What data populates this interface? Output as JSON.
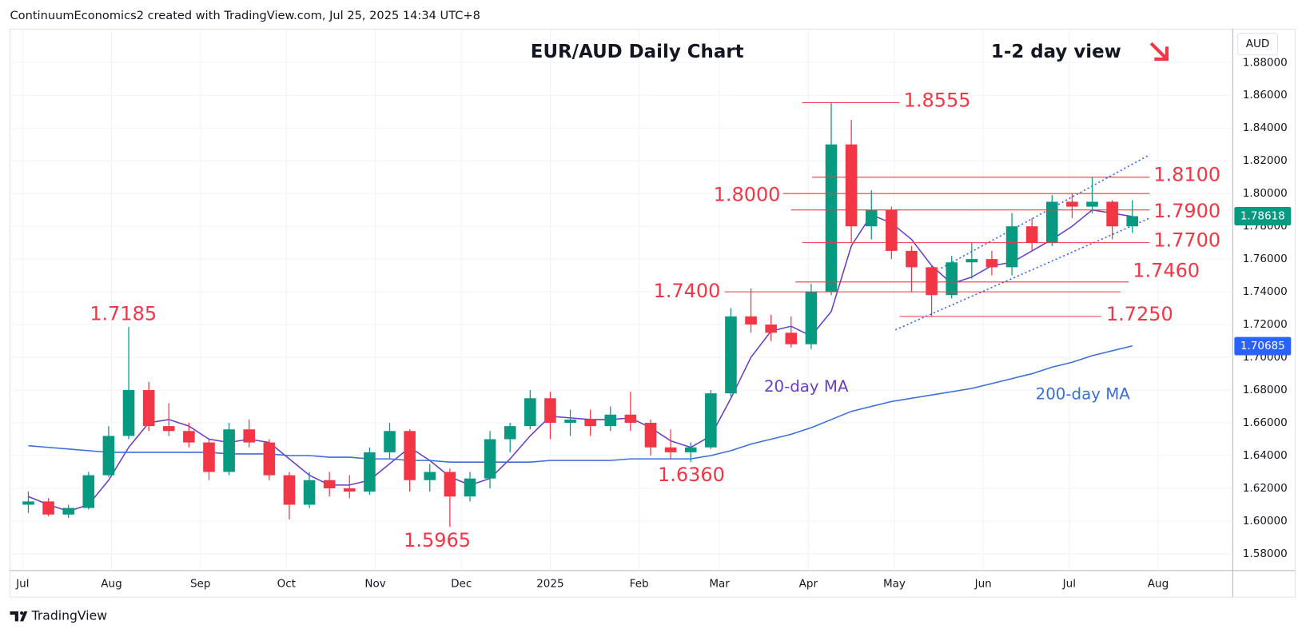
{
  "header": "ContinuumEconomics2 created with TradingView.com, Jul 25, 2025 14:34 UTC+8",
  "footer": "TradingView",
  "chart_data": {
    "type": "candlestick",
    "title": "EUR/AUD Daily Chart",
    "subtitle": "1-2 day view",
    "currency": "AUD",
    "up_color": "#089981",
    "down_color": "#f23645",
    "x": [
      2,
      9,
      16,
      23,
      30,
      37,
      44,
      51,
      58,
      65,
      72,
      79,
      86,
      93,
      100,
      107,
      114,
      121,
      128,
      135,
      142,
      149,
      156,
      163,
      170,
      177,
      184,
      191,
      198,
      205,
      212,
      219,
      226,
      233,
      240,
      247,
      254,
      261,
      268,
      275,
      282,
      289,
      296,
      303,
      310,
      317,
      324,
      331,
      338,
      345,
      352,
      359,
      366,
      373,
      380,
      387
    ],
    "open": [
      1.61,
      1.612,
      1.604,
      1.608,
      1.628,
      1.652,
      1.68,
      1.658,
      1.655,
      1.648,
      1.63,
      1.656,
      1.648,
      1.628,
      1.61,
      1.625,
      1.62,
      1.618,
      1.642,
      1.655,
      1.625,
      1.63,
      1.615,
      1.626,
      1.65,
      1.658,
      1.675,
      1.66,
      1.662,
      1.658,
      1.665,
      1.66,
      1.645,
      1.642,
      1.645,
      1.678,
      1.725,
      1.72,
      1.715,
      1.708,
      1.74,
      1.83,
      1.78,
      1.79,
      1.765,
      1.755,
      1.738,
      1.758,
      1.76,
      1.755,
      1.78,
      1.77,
      1.795,
      1.792,
      1.795,
      1.78
    ],
    "high": [
      1.618,
      1.614,
      1.61,
      1.63,
      1.658,
      1.7185,
      1.685,
      1.672,
      1.66,
      1.65,
      1.66,
      1.662,
      1.65,
      1.63,
      1.63,
      1.63,
      1.628,
      1.645,
      1.66,
      1.656,
      1.635,
      1.632,
      1.63,
      1.655,
      1.66,
      1.68,
      1.679,
      1.668,
      1.668,
      1.67,
      1.679,
      1.662,
      1.656,
      1.648,
      1.68,
      1.73,
      1.742,
      1.726,
      1.725,
      1.745,
      1.8555,
      1.845,
      1.802,
      1.792,
      1.768,
      1.756,
      1.762,
      1.77,
      1.765,
      1.788,
      1.785,
      1.799,
      1.8,
      1.81,
      1.796,
      1.796
    ],
    "low": [
      1.605,
      1.603,
      1.602,
      1.607,
      1.627,
      1.65,
      1.655,
      1.652,
      1.645,
      1.625,
      1.628,
      1.645,
      1.625,
      1.601,
      1.608,
      1.615,
      1.614,
      1.616,
      1.638,
      1.618,
      1.618,
      1.5965,
      1.612,
      1.62,
      1.642,
      1.656,
      1.65,
      1.652,
      1.652,
      1.655,
      1.655,
      1.64,
      1.638,
      1.636,
      1.644,
      1.676,
      1.715,
      1.71,
      1.706,
      1.705,
      1.738,
      1.77,
      1.772,
      1.76,
      1.74,
      1.725,
      1.736,
      1.748,
      1.75,
      1.75,
      1.765,
      1.768,
      1.785,
      1.788,
      1.772,
      1.776
    ],
    "close": [
      1.612,
      1.604,
      1.608,
      1.628,
      1.652,
      1.68,
      1.658,
      1.655,
      1.648,
      1.63,
      1.656,
      1.648,
      1.628,
      1.61,
      1.625,
      1.62,
      1.618,
      1.642,
      1.655,
      1.625,
      1.63,
      1.615,
      1.626,
      1.65,
      1.658,
      1.675,
      1.66,
      1.662,
      1.658,
      1.665,
      1.66,
      1.645,
      1.642,
      1.645,
      1.678,
      1.725,
      1.72,
      1.715,
      1.708,
      1.74,
      1.83,
      1.78,
      1.79,
      1.765,
      1.755,
      1.738,
      1.758,
      1.76,
      1.755,
      1.78,
      1.77,
      1.795,
      1.792,
      1.795,
      1.78,
      1.7862
    ],
    "series": [
      {
        "name": "20-day MA",
        "color": "#6a3fc8",
        "values": [
          1.615,
          1.61,
          1.606,
          1.61,
          1.625,
          1.645,
          1.66,
          1.662,
          1.658,
          1.65,
          1.648,
          1.65,
          1.648,
          1.638,
          1.628,
          1.622,
          1.622,
          1.625,
          1.635,
          1.645,
          1.637,
          1.627,
          1.622,
          1.626,
          1.638,
          1.652,
          1.664,
          1.663,
          1.662,
          1.662,
          1.663,
          1.657,
          1.649,
          1.645,
          1.652,
          1.675,
          1.7,
          1.716,
          1.719,
          1.713,
          1.728,
          1.768,
          1.787,
          1.782,
          1.772,
          1.756,
          1.745,
          1.749,
          1.756,
          1.758,
          1.765,
          1.772,
          1.78,
          1.79,
          1.788,
          1.786
        ]
      },
      {
        "name": "200-day MA",
        "color": "#3a6fd8",
        "values": [
          1.646,
          1.645,
          1.644,
          1.643,
          1.642,
          1.642,
          1.642,
          1.642,
          1.642,
          1.642,
          1.641,
          1.641,
          1.641,
          1.64,
          1.64,
          1.639,
          1.639,
          1.638,
          1.638,
          1.637,
          1.637,
          1.636,
          1.636,
          1.636,
          1.636,
          1.636,
          1.637,
          1.637,
          1.637,
          1.637,
          1.638,
          1.638,
          1.638,
          1.638,
          1.64,
          1.643,
          1.647,
          1.65,
          1.653,
          1.657,
          1.662,
          1.667,
          1.67,
          1.673,
          1.675,
          1.677,
          1.679,
          1.681,
          1.684,
          1.687,
          1.69,
          1.694,
          1.697,
          1.701,
          1.704,
          1.707
        ]
      }
    ],
    "levels": [
      {
        "value": 1.8555,
        "label": "1.8555"
      },
      {
        "value": 1.81,
        "label": "1.8100"
      },
      {
        "value": 1.8,
        "label": "1.8000"
      },
      {
        "value": 1.79,
        "label": "1.7900"
      },
      {
        "value": 1.77,
        "label": "1.7700"
      },
      {
        "value": 1.746,
        "label": "1.7460"
      },
      {
        "value": 1.74,
        "label": "1.7400"
      },
      {
        "value": 1.725,
        "label": "1.7250"
      },
      {
        "value": 1.7185,
        "label": "1.7185"
      },
      {
        "value": 1.636,
        "label": "1.6360"
      },
      {
        "value": 1.5965,
        "label": "1.5965"
      }
    ],
    "level_color": "#f23645",
    "price_tags": [
      {
        "value": 1.78618,
        "color": "#089981"
      },
      {
        "value": 1.70685,
        "color": "#2962ff"
      }
    ],
    "xlim": [
      -4.4,
      422
    ],
    "xticks": [
      {
        "value": 0,
        "label": "Jul"
      },
      {
        "value": 31,
        "label": "Aug"
      },
      {
        "value": 62,
        "label": "Sep"
      },
      {
        "value": 92,
        "label": "Oct"
      },
      {
        "value": 123,
        "label": "Nov"
      },
      {
        "value": 153,
        "label": "Dec"
      },
      {
        "value": 184,
        "label": "2025"
      },
      {
        "value": 215,
        "label": "Feb"
      },
      {
        "value": 243,
        "label": "Mar"
      },
      {
        "value": 274,
        "label": "Apr"
      },
      {
        "value": 304,
        "label": "May"
      },
      {
        "value": 335,
        "label": "Jun"
      },
      {
        "value": 365,
        "label": "Jul"
      },
      {
        "value": 396,
        "label": "Aug"
      }
    ],
    "ylim": [
      1.5698,
      1.9004
    ],
    "yticks": [
      {
        "value": 1.58,
        "label": "1.58000"
      },
      {
        "value": 1.6,
        "label": "1.60000"
      },
      {
        "value": 1.62,
        "label": "1.62000"
      },
      {
        "value": 1.64,
        "label": "1.64000"
      },
      {
        "value": 1.66,
        "label": "1.66000"
      },
      {
        "value": 1.68,
        "label": "1.68000"
      },
      {
        "value": 1.7,
        "label": "1.70000"
      },
      {
        "value": 1.72,
        "label": "1.72000"
      },
      {
        "value": 1.74,
        "label": "1.74000"
      },
      {
        "value": 1.76,
        "label": "1.76000"
      },
      {
        "value": 1.78,
        "label": "1.78000"
      },
      {
        "value": 1.8,
        "label": "1.80000"
      },
      {
        "value": 1.82,
        "label": "1.82000"
      },
      {
        "value": 1.84,
        "label": "1.84000"
      },
      {
        "value": 1.86,
        "label": "1.86000"
      },
      {
        "value": 1.88,
        "label": "1.88000"
      }
    ],
    "grid": true
  }
}
